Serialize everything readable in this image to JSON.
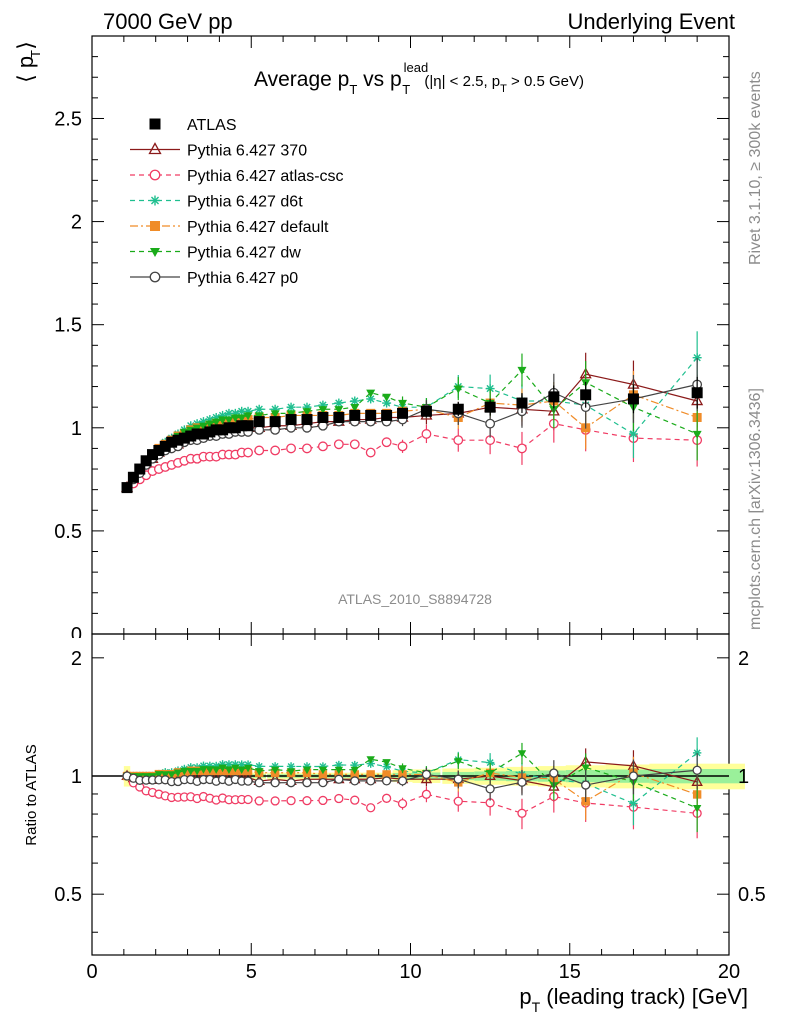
{
  "header": {
    "left": "7000 GeV pp",
    "right": "Underlying Event"
  },
  "side": {
    "rivet": "Rivet 3.1.10, ≥ 300k events",
    "mcplots": "mcplots.cern.ch [arXiv:1306.3436]"
  },
  "watermark": "ATLAS_2010_S8894728",
  "chart_data": [
    {
      "type": "line",
      "panel": "main",
      "title": {
        "main": "Average p",
        "sub1": "T",
        "vs": " vs p",
        "sup": "lead",
        "sub2": "T",
        "cut": " (|η| < 2.5, p",
        "cut_sub": "T",
        "cut_end": " > 0.5 GeV)"
      },
      "ylabel": "⟨ p  ⟩",
      "ylabel_sub": "T",
      "xlim": [
        0,
        20
      ],
      "ylim": [
        0,
        2.9
      ],
      "yticks": [
        0.5,
        1,
        1.5,
        2,
        2.5
      ],
      "ytick_labels": [
        "0.5",
        "1",
        "1.5",
        "2",
        "2.5"
      ],
      "legend_position": "top-left",
      "x": [
        1.1,
        1.3,
        1.5,
        1.7,
        1.9,
        2.1,
        2.3,
        2.5,
        2.7,
        2.9,
        3.1,
        3.3,
        3.5,
        3.7,
        3.9,
        4.1,
        4.3,
        4.5,
        4.7,
        4.9,
        5.25,
        5.75,
        6.25,
        6.75,
        7.25,
        7.75,
        8.25,
        8.75,
        9.25,
        9.75,
        10.5,
        11.5,
        12.5,
        13.5,
        14.5,
        15.5,
        17.0,
        19.0
      ],
      "series": [
        {
          "name": "ATLAS",
          "color": "#000000",
          "marker": "square-filled",
          "linestyle": "none",
          "values": [
            0.71,
            0.76,
            0.8,
            0.84,
            0.87,
            0.89,
            0.91,
            0.93,
            0.94,
            0.95,
            0.96,
            0.97,
            0.97,
            0.98,
            0.99,
            0.99,
            1.0,
            1.0,
            1.01,
            1.01,
            1.03,
            1.03,
            1.04,
            1.04,
            1.05,
            1.05,
            1.06,
            1.06,
            1.06,
            1.07,
            1.08,
            1.09,
            1.1,
            1.12,
            1.15,
            1.16,
            1.14,
            1.17
          ]
        },
        {
          "name": "Pythia 6.427 370",
          "color": "#8b1a1a",
          "marker": "triangle-open",
          "linestyle": "solid",
          "values": [
            0.71,
            0.75,
            0.79,
            0.83,
            0.85,
            0.88,
            0.9,
            0.91,
            0.92,
            0.94,
            0.95,
            0.96,
            0.97,
            0.97,
            0.98,
            0.98,
            0.99,
            0.99,
            1.0,
            1.0,
            1.0,
            1.01,
            1.01,
            1.02,
            1.03,
            1.03,
            1.04,
            1.04,
            1.05,
            1.05,
            1.06,
            1.07,
            1.1,
            1.09,
            1.08,
            1.26,
            1.21,
            1.13
          ]
        },
        {
          "name": "Pythia 6.427 atlas-csc",
          "color": "#f03c64",
          "marker": "circle-open",
          "linestyle": "dashed",
          "values": [
            0.71,
            0.73,
            0.75,
            0.77,
            0.79,
            0.8,
            0.81,
            0.82,
            0.83,
            0.84,
            0.85,
            0.85,
            0.86,
            0.86,
            0.86,
            0.87,
            0.87,
            0.87,
            0.88,
            0.88,
            0.89,
            0.89,
            0.9,
            0.9,
            0.91,
            0.92,
            0.92,
            0.88,
            0.93,
            0.91,
            0.97,
            0.94,
            0.94,
            0.9,
            1.02,
            0.99,
            0.95,
            0.94
          ]
        },
        {
          "name": "Pythia 6.427 d6t",
          "color": "#1fbf8f",
          "marker": "star",
          "linestyle": "dashed",
          "values": [
            0.71,
            0.76,
            0.8,
            0.84,
            0.87,
            0.9,
            0.93,
            0.95,
            0.97,
            0.99,
            1.01,
            1.02,
            1.03,
            1.04,
            1.05,
            1.06,
            1.07,
            1.07,
            1.08,
            1.08,
            1.09,
            1.09,
            1.1,
            1.1,
            1.11,
            1.12,
            1.13,
            1.14,
            1.12,
            1.1,
            1.1,
            1.2,
            1.19,
            1.13,
            1.13,
            1.11,
            0.97,
            1.34
          ]
        },
        {
          "name": "Pythia 6.427 default",
          "color": "#f08c28",
          "marker": "square-filled",
          "linestyle": "dashdot",
          "values": [
            0.71,
            0.76,
            0.8,
            0.84,
            0.87,
            0.9,
            0.92,
            0.94,
            0.96,
            0.97,
            0.99,
            1.0,
            1.0,
            1.01,
            1.02,
            1.02,
            1.03,
            1.03,
            1.04,
            1.04,
            1.05,
            1.05,
            1.06,
            1.06,
            1.06,
            1.06,
            1.07,
            1.07,
            1.07,
            1.08,
            1.09,
            1.05,
            1.12,
            1.11,
            1.13,
            1.0,
            1.16,
            1.05
          ]
        },
        {
          "name": "Pythia 6.427 dw",
          "color": "#1aab1a",
          "marker": "triangle-down-filled",
          "linestyle": "dashed",
          "values": [
            0.71,
            0.76,
            0.8,
            0.84,
            0.87,
            0.9,
            0.92,
            0.94,
            0.96,
            0.98,
            0.99,
            1.0,
            1.01,
            1.02,
            1.03,
            1.04,
            1.04,
            1.05,
            1.05,
            1.06,
            1.06,
            1.07,
            1.07,
            1.08,
            1.09,
            1.09,
            1.1,
            1.17,
            1.15,
            1.12,
            1.1,
            1.19,
            1.12,
            1.28,
            1.09,
            1.22,
            1.1,
            0.97
          ]
        },
        {
          "name": "Pythia 6.427 p0",
          "color": "#444444",
          "marker": "circle-open",
          "linestyle": "solid",
          "values": [
            0.71,
            0.75,
            0.78,
            0.82,
            0.85,
            0.87,
            0.89,
            0.9,
            0.91,
            0.93,
            0.94,
            0.94,
            0.95,
            0.96,
            0.96,
            0.97,
            0.97,
            0.98,
            0.98,
            0.98,
            0.99,
            0.99,
            1.0,
            1.0,
            1.01,
            1.03,
            1.03,
            1.03,
            1.03,
            1.04,
            1.09,
            1.07,
            1.02,
            1.08,
            1.17,
            1.1,
            1.14,
            1.21
          ]
        }
      ]
    },
    {
      "type": "line",
      "panel": "ratio",
      "ylabel": "Ratio to ATLAS",
      "xlabel": "p",
      "xlabel_sub": "T",
      "xlabel_rest": " (leading track) [GeV]",
      "xlim": [
        0,
        20
      ],
      "ylim": [
        0.35,
        2.3
      ],
      "xticks": [
        0,
        5,
        10,
        15,
        20
      ],
      "xtick_labels": [
        "0",
        "5",
        "10",
        "15",
        "20"
      ],
      "yticks": [
        0.5,
        1,
        2
      ],
      "ytick_labels": [
        "0.5",
        "1",
        "2"
      ]
    }
  ]
}
